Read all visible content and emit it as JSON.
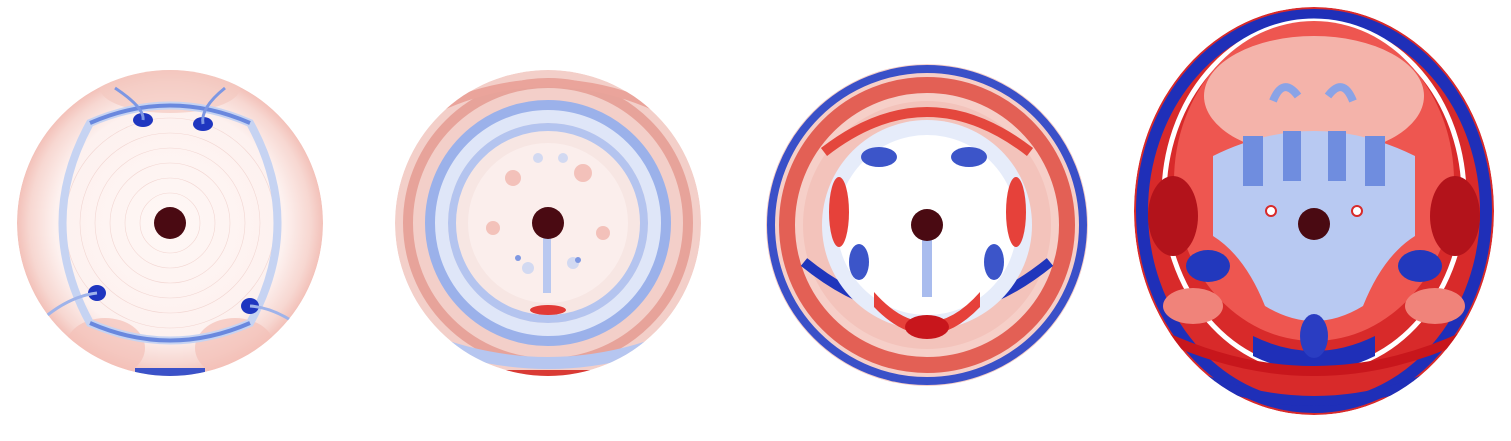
{
  "figure": {
    "description_panels": [
      {
        "id": "panel-1"
      },
      {
        "id": "panel-2"
      },
      {
        "id": "panel-3"
      },
      {
        "id": "panel-4"
      }
    ]
  },
  "colors": {
    "red_strong": "#c8102e",
    "red_mid": "#e8605a",
    "red_light": "#f6c4bd",
    "blue_strong": "#1f2fb8",
    "blue_mid": "#5b7fe0",
    "blue_light": "#c9d8f5",
    "core": "#4a0a12",
    "background": "#ffffff"
  }
}
